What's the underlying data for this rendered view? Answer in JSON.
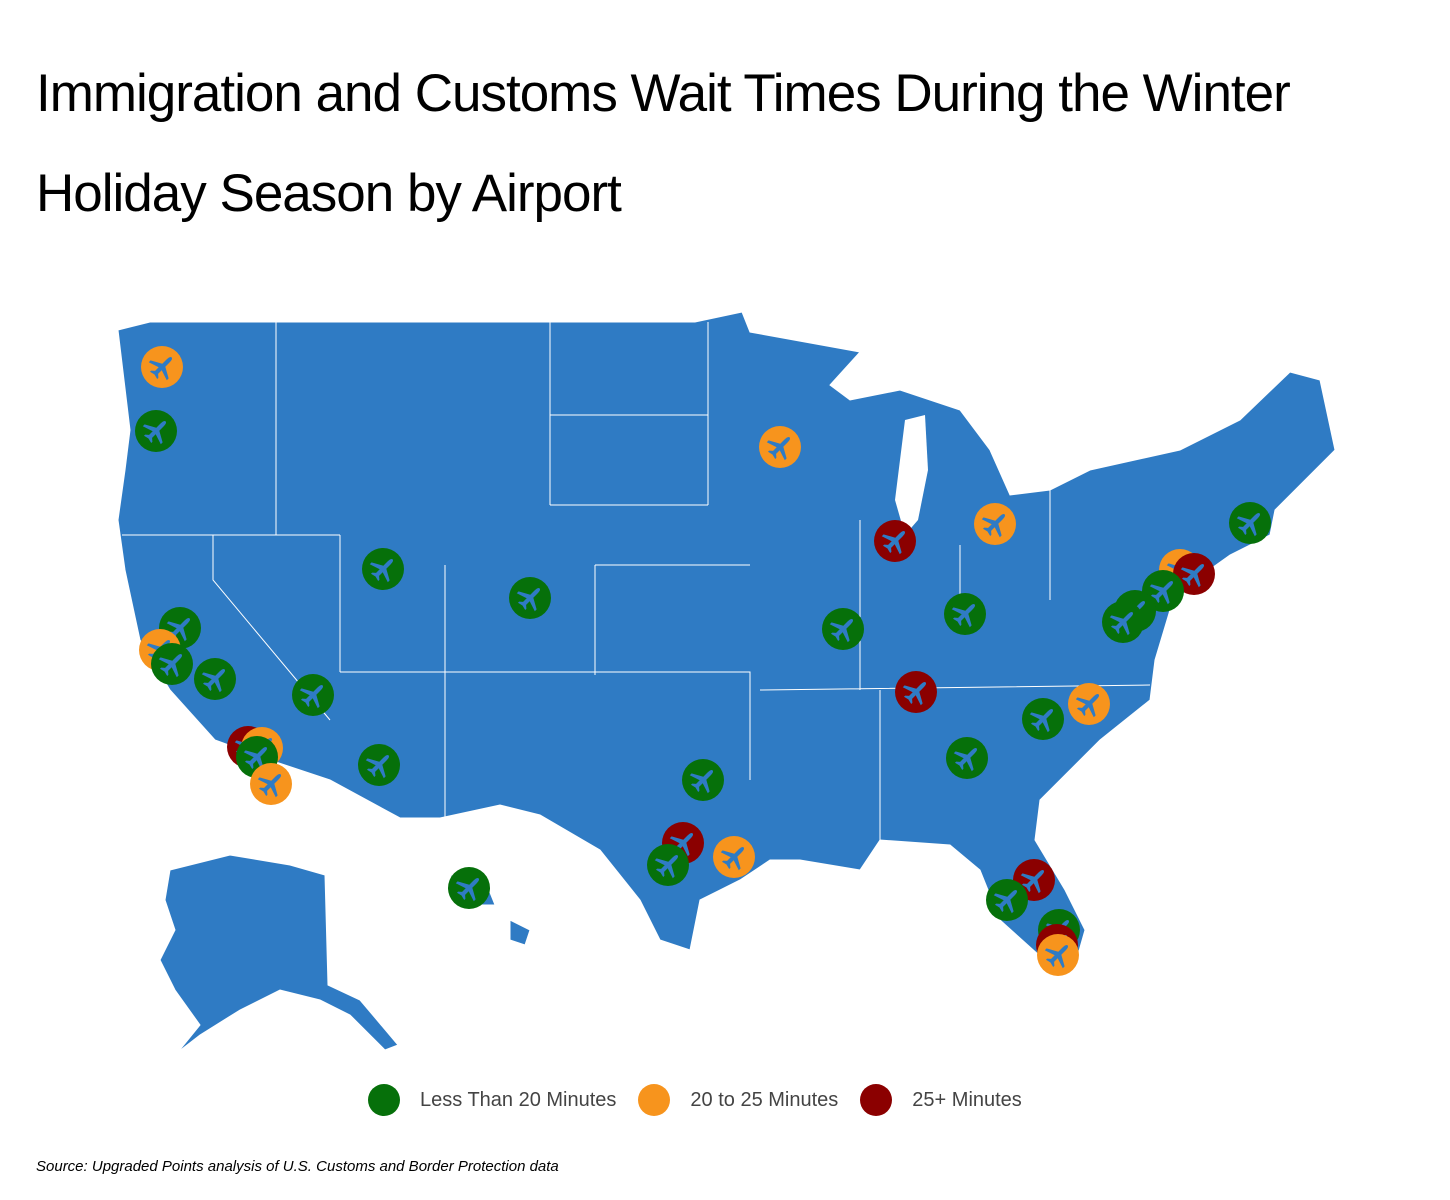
{
  "title": "Immigration and Customs Wait Times During the Winter Holiday Season by Airport",
  "legend": [
    {
      "label": "Less Than 20 Minutes",
      "color": "#06700a"
    },
    {
      "label": "20 to 25 Minutes",
      "color": "#f7941d"
    },
    {
      "label": "25+ Minutes",
      "color": "#8b0000"
    }
  ],
  "map_color": "#2f7bc4",
  "marker_icon": "airplane-icon",
  "markers": [
    "o",
    "g",
    "g",
    "o",
    "g",
    "g",
    "g",
    "r",
    "o",
    "g",
    "o",
    "g",
    "g",
    "g",
    "o",
    "r",
    "o",
    "g",
    "g",
    "r",
    "o",
    "g",
    "g",
    "g",
    "o",
    "r",
    "g",
    "g",
    "g",
    "g",
    "r",
    "o",
    "g",
    "g",
    "r",
    "g",
    "g",
    "r",
    "o"
  ],
  "source": "Source: Upgraded Points analysis of U.S. Customs and Border Protection data"
}
